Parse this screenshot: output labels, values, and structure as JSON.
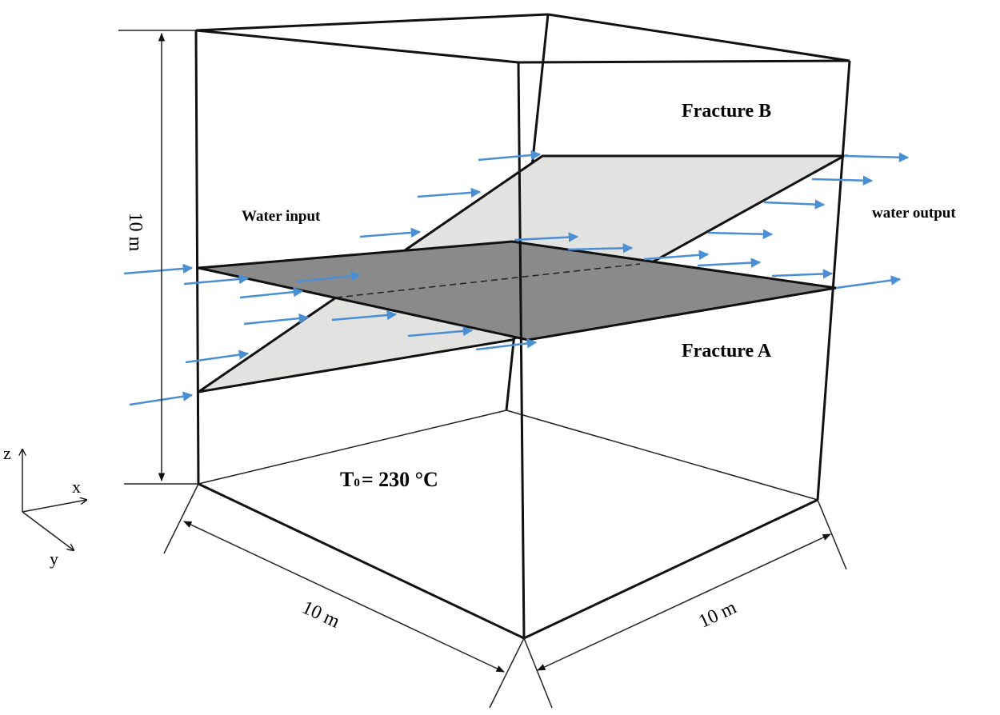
{
  "labels": {
    "fracture_b": "Fracture B",
    "fracture_a": "Fracture A",
    "water_input": "Water input",
    "water_output": "water output",
    "height": "10 m",
    "width_left": "10 m",
    "width_right": "10 m",
    "temperature": {
      "symbol": "T",
      "subscript": "0",
      "value": "= 230 °C"
    },
    "axes": {
      "z": "z",
      "x": "x",
      "y": "y"
    }
  }
}
